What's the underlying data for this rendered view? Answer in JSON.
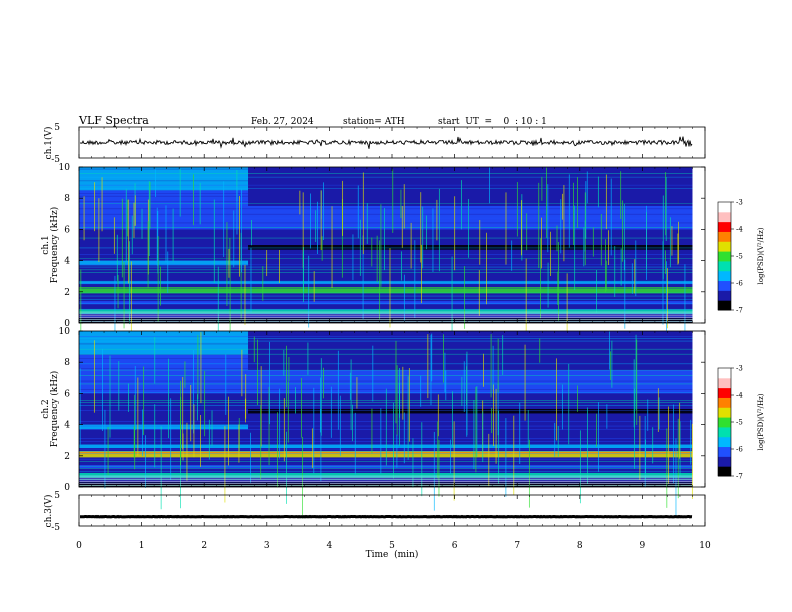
{
  "header": {
    "title": "VLF  Spectra",
    "date": "Feb. 27, 2024",
    "station": "station= ATH",
    "start": "start  UT  =    0  : 10 : 1"
  },
  "chart_data": [
    {
      "type": "line",
      "name": "ch1-waveform",
      "ylabel": "ch.1(V)",
      "ylim": [
        -5,
        5
      ],
      "yticks": [
        "5",
        "-5"
      ],
      "xlim": [
        0,
        10
      ],
      "baseline": 0
    },
    {
      "type": "heatmap",
      "name": "ch1-spectrogram",
      "ylabel": "ch.1\nFrequency  (kHz)",
      "ylim": [
        0,
        10
      ],
      "yticks": [
        0,
        2,
        4,
        6,
        8,
        10
      ],
      "xlim": [
        0,
        10
      ],
      "data_end_min": 9.8,
      "colorbar": {
        "label": "log(PSD)(V²/Hz)",
        "ticks": [
          -3,
          -4,
          -5,
          -6,
          -7
        ],
        "range": [
          -7,
          -3
        ]
      }
    },
    {
      "type": "heatmap",
      "name": "ch2-spectrogram",
      "ylabel": "ch.2\nFrequency  (kHz)",
      "ylim": [
        0,
        10
      ],
      "yticks": [
        0,
        2,
        4,
        6,
        8,
        10
      ],
      "xlim": [
        0,
        10
      ],
      "data_end_min": 9.8,
      "colorbar": {
        "label": "log(PSD)(V²/Hz)",
        "ticks": [
          -3,
          -4,
          -5,
          -6,
          -7
        ],
        "range": [
          -7,
          -3
        ]
      }
    },
    {
      "type": "line",
      "name": "ch3-waveform",
      "ylabel": "ch.3(V)",
      "ylim": [
        -5,
        5
      ],
      "yticks": [
        "5",
        "-5"
      ],
      "xlim": [
        0,
        10
      ],
      "baseline": -2
    }
  ],
  "xaxis": {
    "label": "Time  (min)",
    "ticks": [
      "0",
      "1",
      "2",
      "3",
      "4",
      "5",
      "6",
      "7",
      "8",
      "9",
      "10"
    ]
  },
  "colors": {
    "colormap": [
      "#000000",
      "#1a1aa8",
      "#2050ff",
      "#00b8ff",
      "#00e0b0",
      "#30e030",
      "#e0e000",
      "#ff8000",
      "#ff0000",
      "#ffc0c0",
      "#ffffff"
    ]
  }
}
